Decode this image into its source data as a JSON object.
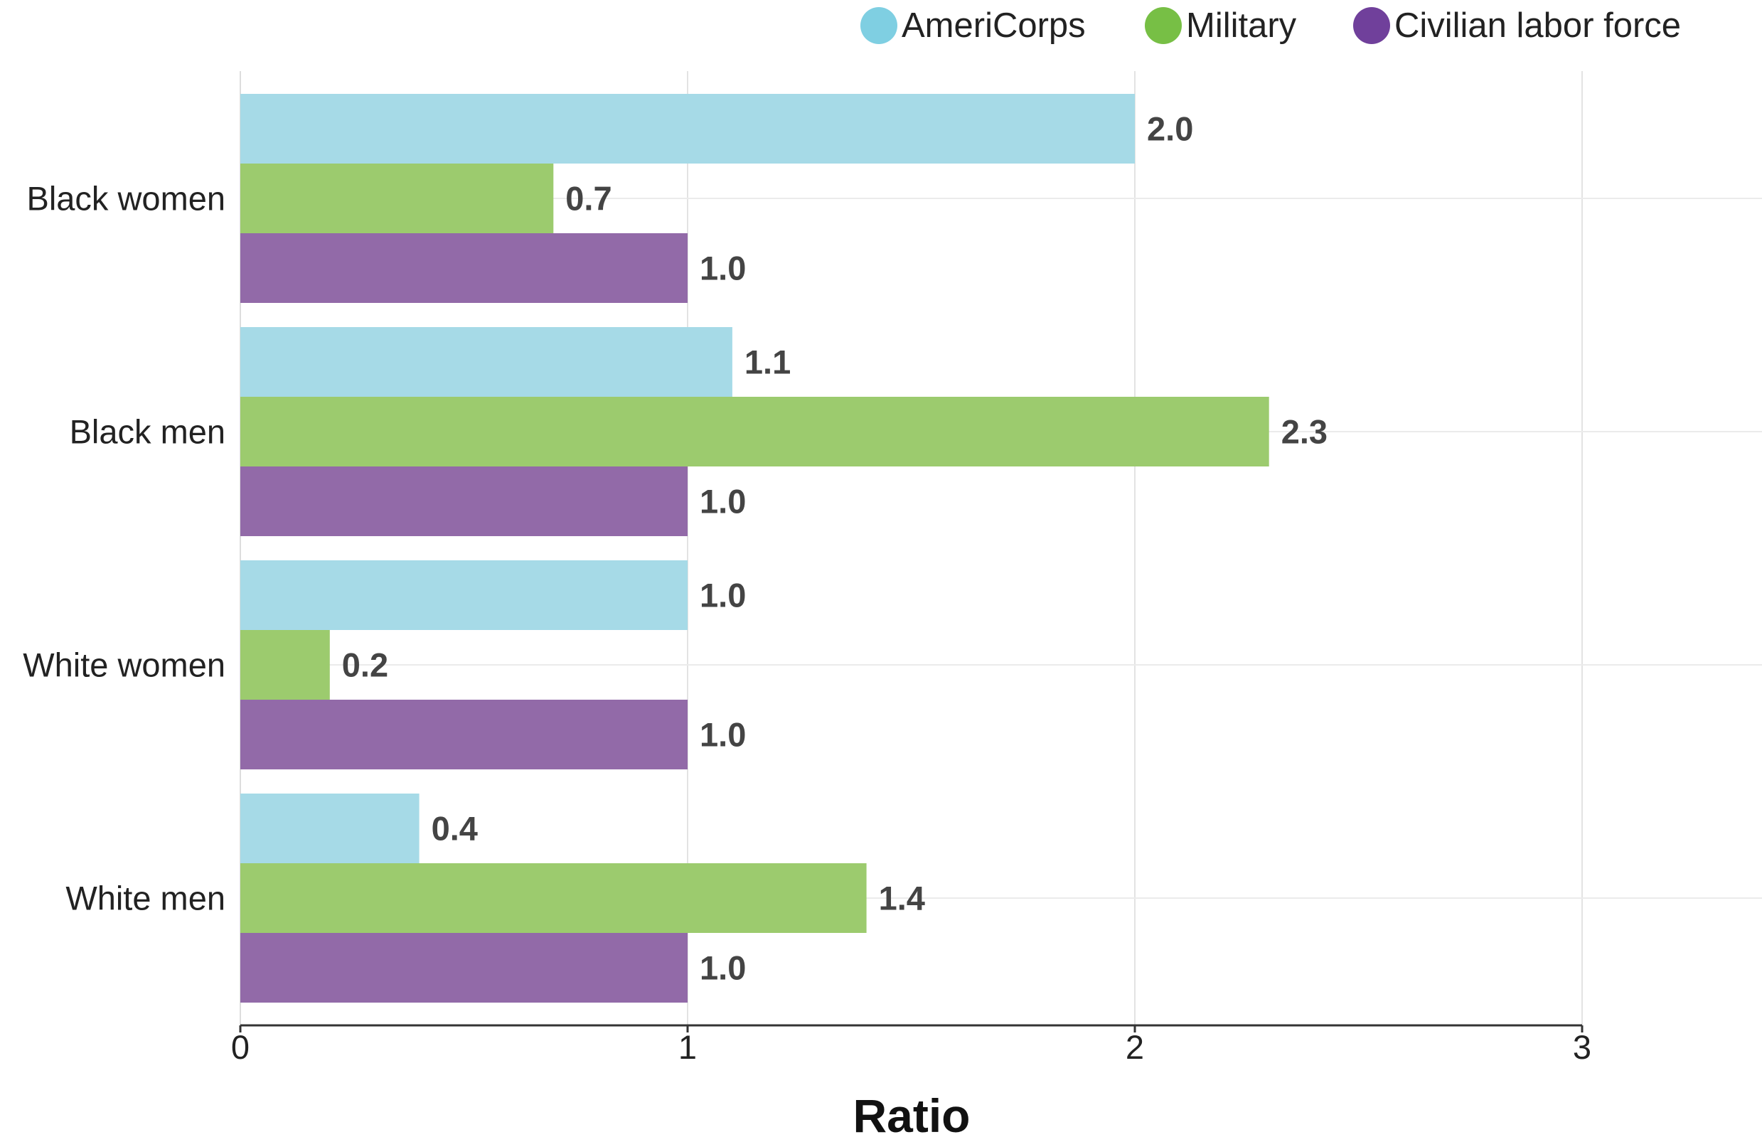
{
  "chart_data": {
    "type": "bar",
    "orientation": "horizontal",
    "categories": [
      "Black women",
      "Black men",
      "White women",
      "White men"
    ],
    "series": [
      {
        "name": "AmeriCorps",
        "color": "#a6dae7",
        "legend_color": "#7fcfe2",
        "values": [
          2.0,
          1.1,
          1.0,
          0.4
        ]
      },
      {
        "name": "Military",
        "color": "#9ccb6e",
        "legend_color": "#77bf45",
        "values": [
          0.7,
          2.3,
          0.2,
          1.4
        ]
      },
      {
        "name": "Civilian labor force",
        "color": "#926aa8",
        "legend_color": "#70409b",
        "values": [
          1.0,
          1.0,
          1.0,
          1.0
        ]
      }
    ],
    "value_labels": [
      [
        "2.0",
        "1.1",
        "1.0",
        "0.4"
      ],
      [
        "0.7",
        "2.3",
        "0.2",
        "1.4"
      ],
      [
        "1.0",
        "1.0",
        "1.0",
        "1.0"
      ]
    ],
    "xlabel": "Ratio",
    "ylabel": "",
    "xlim": [
      0,
      3
    ],
    "xticks": [
      "0",
      "1",
      "2",
      "3"
    ],
    "grid": true,
    "legend": "top-right"
  }
}
